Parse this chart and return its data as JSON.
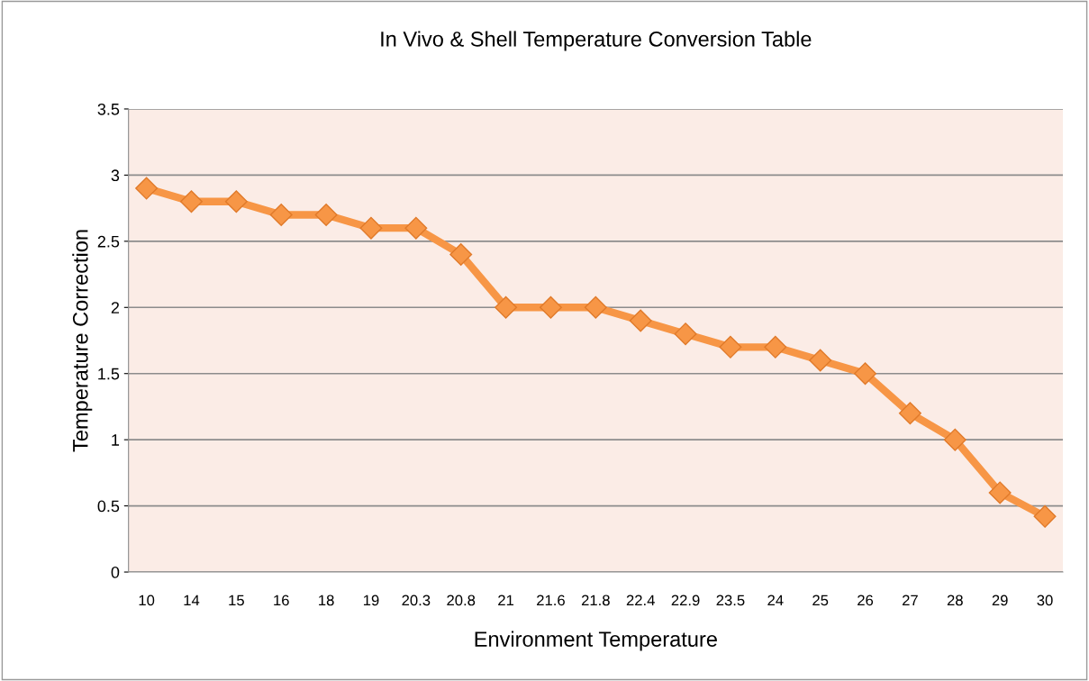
{
  "chart_data": {
    "type": "line",
    "title": "In Vivo & Shell Temperature Conversion Table",
    "xlabel": "Environment Temperature",
    "ylabel": "Temperature Correction",
    "categories": [
      "10",
      "14",
      "15",
      "16",
      "18",
      "19",
      "20.3",
      "20.8",
      "21",
      "21.6",
      "21.8",
      "22.4",
      "22.9",
      "23.5",
      "24",
      "25",
      "26",
      "27",
      "28",
      "29",
      "30"
    ],
    "series": [
      {
        "color": "#f79646",
        "values": [
          2.9,
          2.8,
          2.8,
          2.7,
          2.7,
          2.6,
          2.6,
          2.4,
          2.0,
          2.0,
          2.0,
          1.9,
          1.8,
          1.7,
          1.7,
          1.6,
          1.5,
          1.2,
          1.0,
          0.6,
          0.42
        ]
      }
    ],
    "ylim": [
      0,
      3.5
    ],
    "yticks": [
      0,
      0.5,
      1,
      1.5,
      2,
      2.5,
      3,
      3.5
    ],
    "grid": "y",
    "marker": "diamond",
    "line_style": "solid"
  }
}
